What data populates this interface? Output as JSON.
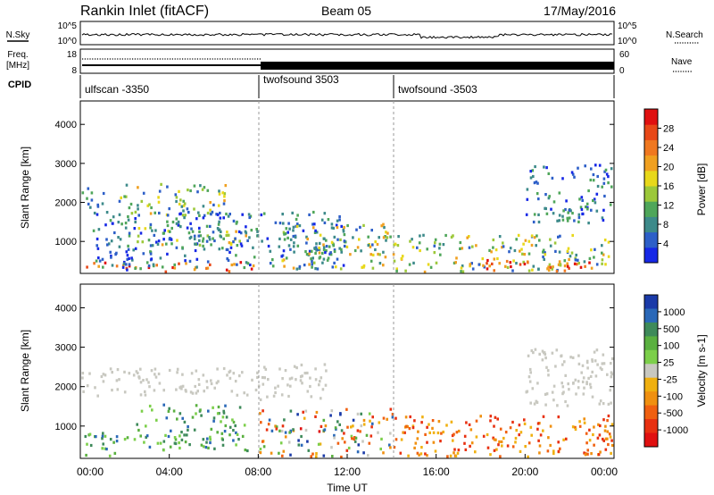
{
  "header": {
    "station": "Rankin Inlet (fitACF)",
    "beam": "Beam 05",
    "date": "17/May/2016"
  },
  "panels": {
    "nsky": {
      "label": "N.Sky",
      "right_label": "N.Search",
      "left_ticks": [
        "10^5",
        "10^0"
      ],
      "right_ticks": [
        "10^5",
        "10^0"
      ]
    },
    "freq": {
      "label_line1": "Freq.",
      "label_line2": "[MHz]",
      "right_label": "Nave",
      "left_ticks": [
        "18",
        "8"
      ],
      "right_ticks": [
        "60",
        "0"
      ]
    },
    "cpid": {
      "label": "CPID",
      "segments": [
        {
          "name": "ulfscan -3350",
          "start_h": 0,
          "end_h": 8
        },
        {
          "name": "twofsound 3503",
          "start_h": 8,
          "end_h": 14
        },
        {
          "name": "twofsound -3503",
          "start_h": 14,
          "end_h": 24
        }
      ]
    }
  },
  "chart_data": [
    {
      "type": "heatmap",
      "title": "",
      "parameter": "Power",
      "xlabel": "Time UT",
      "ylabel": "Slant Range [km]",
      "xlim_hours": [
        0,
        24
      ],
      "ylim": [
        180,
        4600
      ],
      "x_ticks": [
        "00:00",
        "04:00",
        "08:00",
        "12:00",
        "16:00",
        "20:00",
        "00:00"
      ],
      "y_ticks": [
        1000,
        2000,
        3000,
        4000
      ],
      "colorbar": {
        "label": "Power [dB]",
        "ticks": [
          "4",
          "8",
          "12",
          "16",
          "20",
          "24",
          "28"
        ],
        "colors": [
          "#1628e6",
          "#2d5fc8",
          "#3d8a8a",
          "#4fa65a",
          "#9cc83a",
          "#e8d81a",
          "#f0a020",
          "#f07820",
          "#e84818",
          "#e01010"
        ]
      },
      "echo_regions": [
        {
          "t0": 0.0,
          "t1": 8.0,
          "r0": 180,
          "r1": 500,
          "level": "strong"
        },
        {
          "t0": 1.5,
          "t1": 6.5,
          "r0": 1700,
          "r1": 2500,
          "level": "medium"
        },
        {
          "t0": 0.0,
          "t1": 1.0,
          "r0": 1700,
          "r1": 2400,
          "level": "weak"
        },
        {
          "t0": 2.0,
          "t1": 7.5,
          "r0": 900,
          "r1": 1400,
          "level": "medium"
        },
        {
          "t0": 0.5,
          "t1": 12.0,
          "r0": 300,
          "r1": 1800,
          "level": "weak"
        },
        {
          "t0": 9.0,
          "t1": 14.0,
          "r0": 300,
          "r1": 1500,
          "level": "medium"
        },
        {
          "t0": 14.0,
          "t1": 24.0,
          "r0": 180,
          "r1": 1200,
          "level": "medium"
        },
        {
          "t0": 18.0,
          "t1": 23.0,
          "r0": 180,
          "r1": 600,
          "level": "strong"
        },
        {
          "t0": 20.0,
          "t1": 24.0,
          "r0": 1500,
          "r1": 3000,
          "level": "weak"
        }
      ]
    },
    {
      "type": "heatmap",
      "title": "",
      "parameter": "Velocity",
      "xlabel": "Time UT",
      "ylabel": "Slant Range [km]",
      "xlim_hours": [
        0,
        24
      ],
      "ylim": [
        180,
        4600
      ],
      "x_ticks": [
        "00:00",
        "04:00",
        "08:00",
        "12:00",
        "16:00",
        "20:00",
        "00:00"
      ],
      "y_ticks": [
        1000,
        2000,
        3000,
        4000
      ],
      "colorbar": {
        "label": "Velocity [m s-1]",
        "ticks": [
          "1000",
          "500",
          "100",
          "25",
          "-25",
          "-100",
          "-500",
          "-1000"
        ],
        "colors": [
          "#1a3aa8",
          "#2a68b8",
          "#3e8a5a",
          "#5ab040",
          "#7ccf4a",
          "#c8c8c0",
          "#f0b010",
          "#f09010",
          "#f06010",
          "#e83010",
          "#e01010"
        ]
      },
      "echo_regions": [
        {
          "t0": 0.0,
          "t1": 8.0,
          "r0": 1800,
          "r1": 2500,
          "level": "ground"
        },
        {
          "t0": 0.0,
          "t1": 2.5,
          "r0": 180,
          "r1": 900,
          "level": "toward"
        },
        {
          "t0": 2.5,
          "t1": 7.5,
          "r0": 400,
          "r1": 1600,
          "level": "toward"
        },
        {
          "t0": 8.0,
          "t1": 14.0,
          "r0": 180,
          "r1": 1500,
          "level": "mixed"
        },
        {
          "t0": 8.0,
          "t1": 11.0,
          "r0": 1700,
          "r1": 2600,
          "level": "ground"
        },
        {
          "t0": 14.0,
          "t1": 24.0,
          "r0": 180,
          "r1": 1300,
          "level": "away"
        },
        {
          "t0": 20.0,
          "t1": 24.0,
          "r0": 1500,
          "r1": 3000,
          "level": "ground"
        }
      ]
    }
  ]
}
